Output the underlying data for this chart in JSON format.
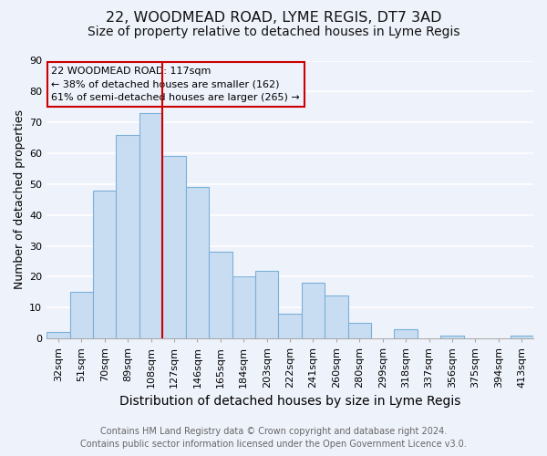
{
  "title_line1": "22, WOODMEAD ROAD, LYME REGIS, DT7 3AD",
  "title_line2": "Size of property relative to detached houses in Lyme Regis",
  "xlabel": "Distribution of detached houses by size in Lyme Regis",
  "ylabel": "Number of detached properties",
  "bar_labels": [
    "32sqm",
    "51sqm",
    "70sqm",
    "89sqm",
    "108sqm",
    "127sqm",
    "146sqm",
    "165sqm",
    "184sqm",
    "203sqm",
    "222sqm",
    "241sqm",
    "260sqm",
    "280sqm",
    "299sqm",
    "318sqm",
    "337sqm",
    "356sqm",
    "375sqm",
    "394sqm",
    "413sqm"
  ],
  "bar_values": [
    2,
    15,
    48,
    66,
    73,
    59,
    49,
    28,
    20,
    22,
    8,
    18,
    14,
    5,
    0,
    3,
    0,
    1,
    0,
    0,
    1
  ],
  "bar_color": "#c9ddf2",
  "bar_edge_color": "#7ab0d8",
  "ylim": [
    0,
    90
  ],
  "yticks": [
    0,
    10,
    20,
    30,
    40,
    50,
    60,
    70,
    80,
    90
  ],
  "vline_x": 4.5,
  "vline_color": "#cc0000",
  "annotation_text_line1": "22 WOODMEAD ROAD: 117sqm",
  "annotation_text_line2": "← 38% of detached houses are smaller (162)",
  "annotation_text_line3": "61% of semi-detached houses are larger (265) →",
  "annotation_box_color": "#cc0000",
  "footnote_line1": "Contains HM Land Registry data © Crown copyright and database right 2024.",
  "footnote_line2": "Contains public sector information licensed under the Open Government Licence v3.0.",
  "background_color": "#eef2fb",
  "grid_color": "#ffffff",
  "title_fontsize": 11.5,
  "subtitle_fontsize": 10,
  "xlabel_fontsize": 10,
  "ylabel_fontsize": 9,
  "tick_fontsize": 8,
  "annotation_fontsize": 8,
  "footnote_fontsize": 7
}
